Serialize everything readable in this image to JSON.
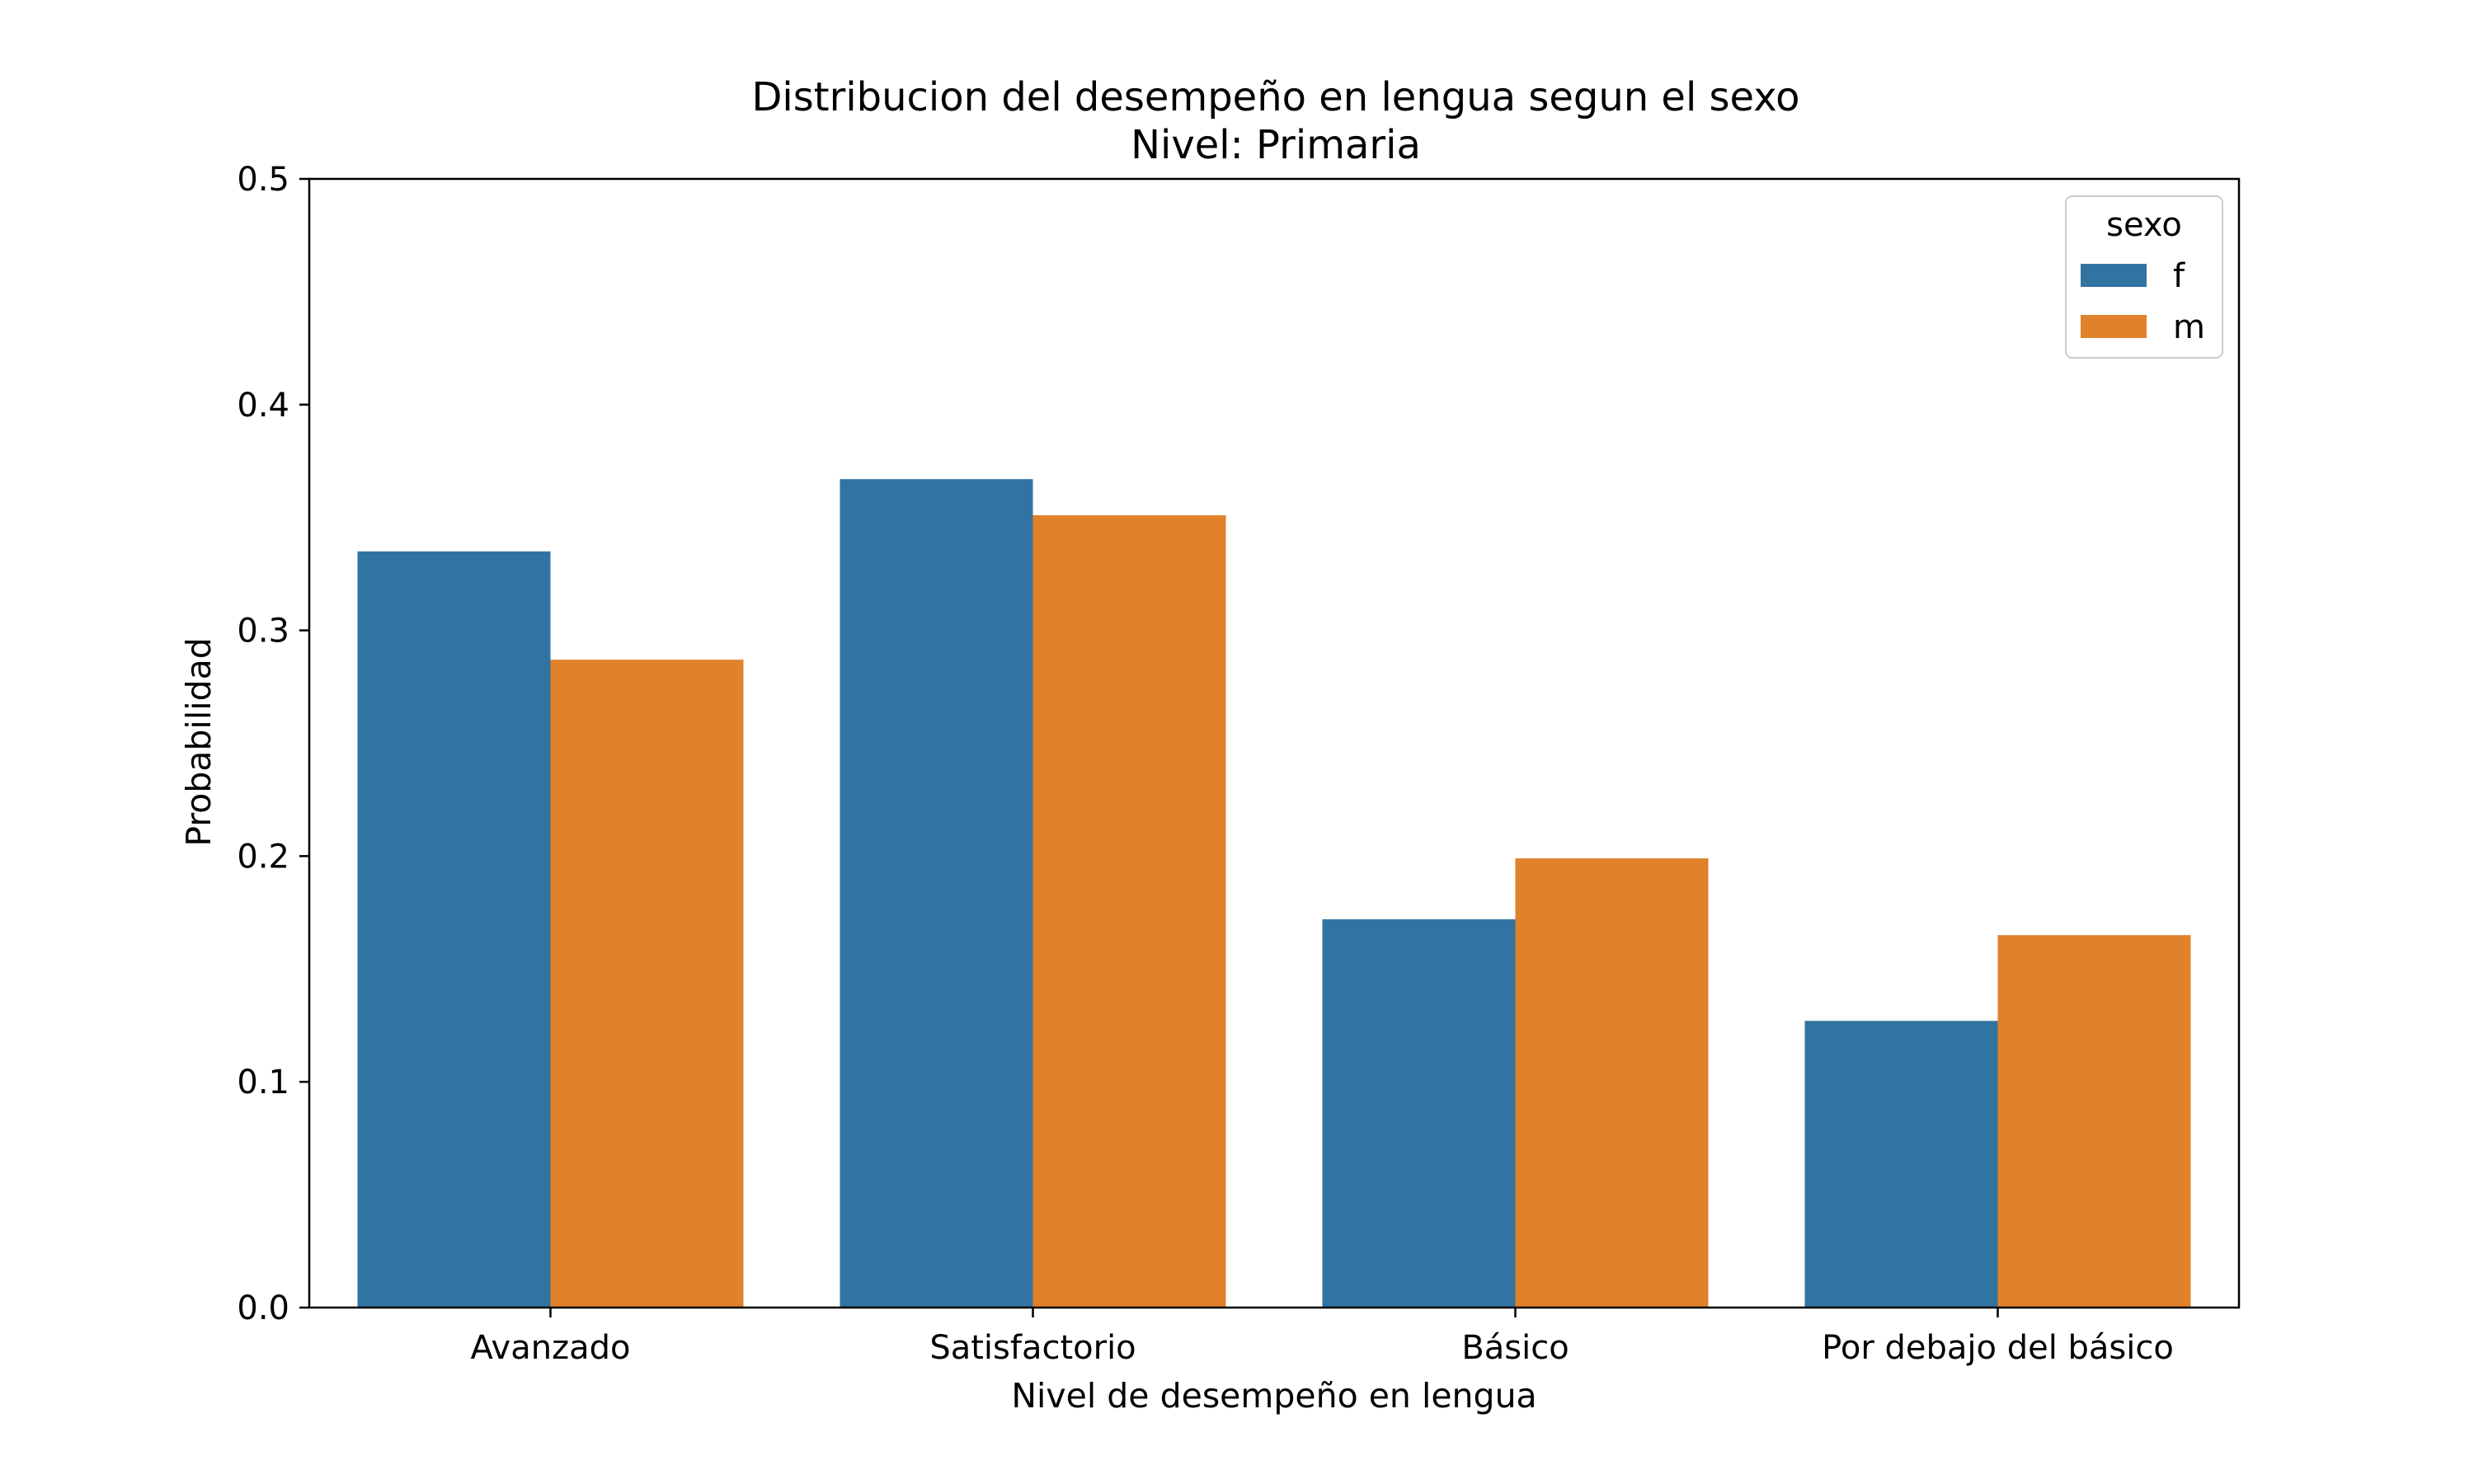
{
  "chart_data": {
    "type": "bar",
    "title": "Distribucion del desempeño en lengua segun el sexo",
    "subtitle": "Nivel: Primaria",
    "xlabel": "Nivel de desempeño en lengua",
    "ylabel": "Probabilidad",
    "ylim": [
      0,
      0.5
    ],
    "yticks": [
      "0.0",
      "0.1",
      "0.2",
      "0.3",
      "0.4",
      "0.5"
    ],
    "categories": [
      "Avanzado",
      "Satisfactorio",
      "Básico",
      "Por debajo del básico"
    ],
    "series": [
      {
        "name": "f",
        "color": "#3274a1",
        "values": [
          0.335,
          0.367,
          0.172,
          0.127
        ]
      },
      {
        "name": "m",
        "color": "#e1812c",
        "values": [
          0.287,
          0.351,
          0.199,
          0.165
        ]
      }
    ],
    "legend": {
      "title": "sexo",
      "position": "top-right"
    },
    "grid": false
  }
}
